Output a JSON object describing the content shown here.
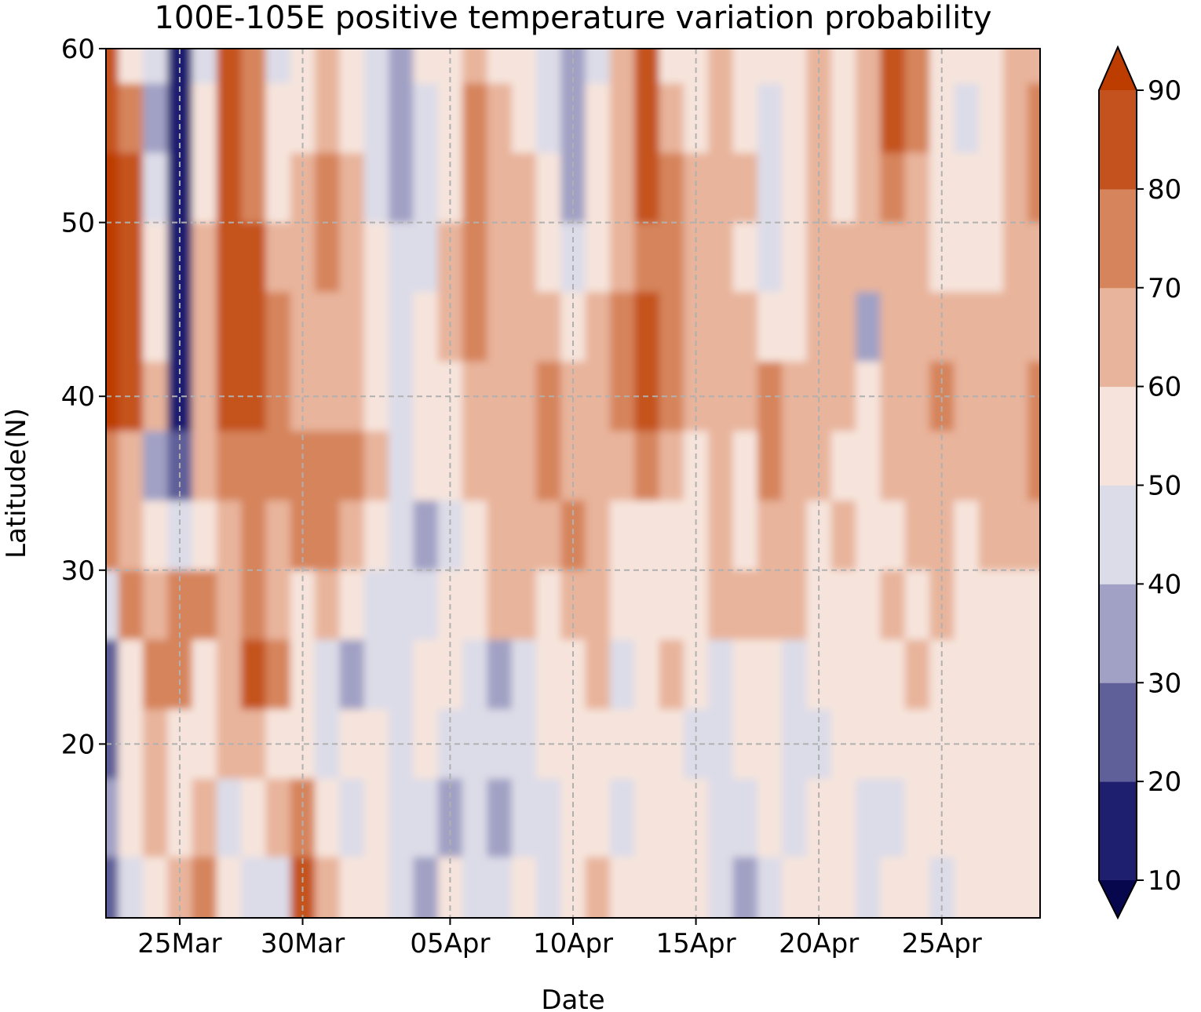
{
  "chart_data": {
    "type": "heatmap",
    "subtype": "filled-contour",
    "title": "100E-105E positive temperature variation probability",
    "xlabel": "Date",
    "ylabel": "Latitude(N)",
    "x_tick_labels": [
      "25Mar",
      "30Mar",
      "05Apr",
      "10Apr",
      "15Apr",
      "20Apr",
      "25Apr"
    ],
    "x_tick_day_offsets": [
      0,
      5,
      11,
      16,
      21,
      26,
      31
    ],
    "x_range_day_offsets": [
      -3,
      35
    ],
    "y_ticks": [
      20,
      30,
      40,
      50,
      60
    ],
    "ylim": [
      10,
      60
    ],
    "grid": true,
    "colorbar": {
      "levels": [
        10,
        20,
        30,
        40,
        50,
        60,
        70,
        80,
        90
      ],
      "tick_labels": [
        "10",
        "20",
        "30",
        "40",
        "50",
        "60",
        "70",
        "80",
        "90"
      ],
      "colors": [
        "#1e1f6f",
        "#5f5f99",
        "#a1a1c5",
        "#dcdce8",
        "#f6e4dc",
        "#e8b49b",
        "#d6845b",
        "#c4521f"
      ],
      "under_color": "#07074d",
      "over_color": "#bd3d00",
      "extend": "both"
    },
    "note": "Approximate coarse-grid probability field (%), rows from 60N down to 11N, columns from day offset -3 to 35 relative to 25Mar",
    "grid_lat": [
      60,
      56,
      52,
      48,
      44,
      40,
      36,
      32,
      28,
      24,
      20,
      16,
      11
    ],
    "grid_day_offsets": [
      -3,
      -2,
      -1,
      0,
      1,
      2,
      3,
      4,
      5,
      6,
      7,
      8,
      9,
      10,
      11,
      12,
      13,
      14,
      15,
      16,
      17,
      18,
      19,
      20,
      21,
      22,
      23,
      24,
      25,
      26,
      27,
      28,
      29,
      30,
      31,
      32,
      33,
      34,
      35
    ],
    "values": [
      [
        85,
        55,
        42,
        12,
        45,
        82,
        72,
        48,
        52,
        62,
        52,
        42,
        35,
        52,
        58,
        62,
        55,
        50,
        45,
        35,
        48,
        62,
        85,
        58,
        52,
        62,
        55,
        55,
        52,
        62,
        55,
        62,
        85,
        72,
        58,
        52,
        52,
        62,
        62
      ],
      [
        85,
        72,
        38,
        15,
        52,
        88,
        72,
        55,
        58,
        68,
        55,
        45,
        30,
        45,
        55,
        72,
        62,
        55,
        42,
        32,
        50,
        62,
        88,
        68,
        55,
        62,
        58,
        48,
        55,
        65,
        55,
        62,
        82,
        72,
        58,
        42,
        55,
        62,
        72
      ],
      [
        92,
        82,
        45,
        18,
        55,
        85,
        78,
        58,
        62,
        72,
        62,
        45,
        35,
        42,
        55,
        75,
        68,
        60,
        50,
        38,
        52,
        62,
        82,
        72,
        60,
        62,
        60,
        45,
        55,
        62,
        55,
        62,
        72,
        65,
        58,
        50,
        55,
        62,
        70
      ],
      [
        92,
        88,
        55,
        15,
        62,
        88,
        82,
        62,
        62,
        75,
        65,
        52,
        42,
        45,
        62,
        78,
        65,
        62,
        58,
        48,
        58,
        68,
        78,
        72,
        62,
        62,
        58,
        48,
        55,
        62,
        60,
        62,
        62,
        60,
        58,
        55,
        55,
        62,
        68
      ],
      [
        92,
        88,
        58,
        12,
        68,
        85,
        88,
        70,
        62,
        68,
        68,
        55,
        48,
        52,
        62,
        72,
        68,
        62,
        62,
        52,
        62,
        72,
        82,
        72,
        62,
        62,
        62,
        55,
        58,
        62,
        62,
        38,
        62,
        62,
        68,
        62,
        62,
        62,
        62
      ],
      [
        92,
        88,
        62,
        10,
        65,
        80,
        82,
        72,
        62,
        62,
        62,
        58,
        45,
        50,
        55,
        62,
        68,
        62,
        75,
        62,
        62,
        72,
        82,
        72,
        62,
        62,
        68,
        72,
        68,
        62,
        62,
        55,
        62,
        62,
        72,
        62,
        62,
        62,
        70
      ],
      [
        72,
        62,
        35,
        25,
        60,
        75,
        75,
        70,
        72,
        70,
        72,
        62,
        48,
        50,
        55,
        62,
        62,
        62,
        72,
        68,
        62,
        62,
        72,
        62,
        55,
        62,
        55,
        70,
        62,
        62,
        58,
        52,
        62,
        62,
        62,
        62,
        62,
        62,
        70
      ],
      [
        72,
        65,
        55,
        42,
        55,
        62,
        72,
        62,
        72,
        72,
        62,
        58,
        42,
        35,
        48,
        55,
        62,
        62,
        62,
        72,
        62,
        58,
        58,
        55,
        55,
        62,
        55,
        60,
        62,
        55,
        62,
        55,
        55,
        62,
        62,
        55,
        62,
        62,
        62
      ],
      [
        42,
        72,
        62,
        75,
        72,
        62,
        78,
        62,
        55,
        62,
        55,
        48,
        42,
        45,
        55,
        55,
        62,
        62,
        55,
        68,
        62,
        55,
        52,
        55,
        55,
        62,
        62,
        65,
        62,
        55,
        55,
        55,
        62,
        55,
        62,
        52,
        55,
        55,
        58
      ],
      [
        28,
        55,
        72,
        72,
        52,
        65,
        80,
        72,
        55,
        42,
        38,
        45,
        48,
        55,
        52,
        45,
        35,
        48,
        55,
        55,
        62,
        48,
        55,
        62,
        52,
        45,
        52,
        55,
        48,
        55,
        55,
        52,
        55,
        62,
        55,
        52,
        52,
        55,
        55
      ],
      [
        25,
        52,
        65,
        55,
        52,
        60,
        62,
        55,
        50,
        48,
        50,
        52,
        48,
        52,
        48,
        40,
        45,
        42,
        55,
        55,
        52,
        50,
        55,
        55,
        48,
        48,
        50,
        52,
        48,
        48,
        50,
        52,
        55,
        55,
        50,
        50,
        55,
        52,
        55
      ],
      [
        32,
        58,
        62,
        55,
        62,
        45,
        55,
        62,
        72,
        55,
        48,
        55,
        42,
        48,
        38,
        40,
        30,
        42,
        48,
        55,
        55,
        48,
        52,
        55,
        52,
        42,
        45,
        50,
        48,
        50,
        52,
        48,
        42,
        52,
        55,
        52,
        55,
        52,
        55
      ],
      [
        20,
        40,
        55,
        65,
        75,
        52,
        42,
        48,
        80,
        60,
        50,
        52,
        48,
        32,
        50,
        42,
        48,
        52,
        48,
        55,
        62,
        50,
        55,
        52,
        50,
        45,
        38,
        48,
        52,
        50,
        52,
        48,
        50,
        52,
        42,
        52,
        55,
        52,
        55
      ]
    ]
  }
}
